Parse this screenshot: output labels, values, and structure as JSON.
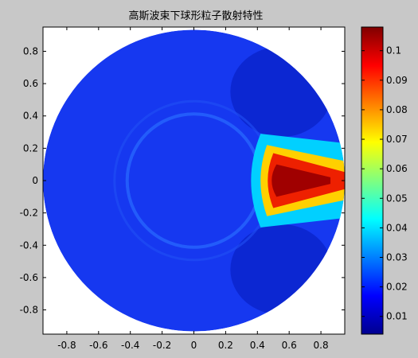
{
  "chart_data": {
    "type": "heatmap",
    "title": "高斯波束下球形粒子散射特性",
    "xlabel": "",
    "ylabel": "",
    "xlim": [
      -0.95,
      0.95
    ],
    "ylim": [
      -0.95,
      0.95
    ],
    "x_ticks": [
      "-0.8",
      "-0.6",
      "-0.4",
      "-0.2",
      "0",
      "0.2",
      "0.4",
      "0.6",
      "0.8"
    ],
    "y_ticks": [
      "0.8",
      "0.6",
      "0.4",
      "0.2",
      "0",
      "-0.2",
      "-0.4",
      "-0.6",
      "-0.8"
    ],
    "colorbar": {
      "colormap": "jet",
      "range": [
        0.004,
        0.108
      ],
      "ticks": [
        "0.1",
        "0.09",
        "0.08",
        "0.07",
        "0.06",
        "0.05",
        "0.04",
        "0.03",
        "0.02",
        "0.01"
      ]
    },
    "field": {
      "domain_radius": 0.95,
      "background_value": 0.012,
      "sphere_center": [
        0.0,
        0.0
      ],
      "sphere_radius": 0.42,
      "sphere_rim_value": 0.025,
      "hotspot_peak": [
        0.6,
        0.0
      ],
      "hotspot_peak_value": 0.108,
      "hotspot_region": "x from 0.42 to 0.95, |y| up to 0.28"
    },
    "colors": {
      "figure_background": "#c8c8c8",
      "axes_background": "#ffffff"
    }
  }
}
